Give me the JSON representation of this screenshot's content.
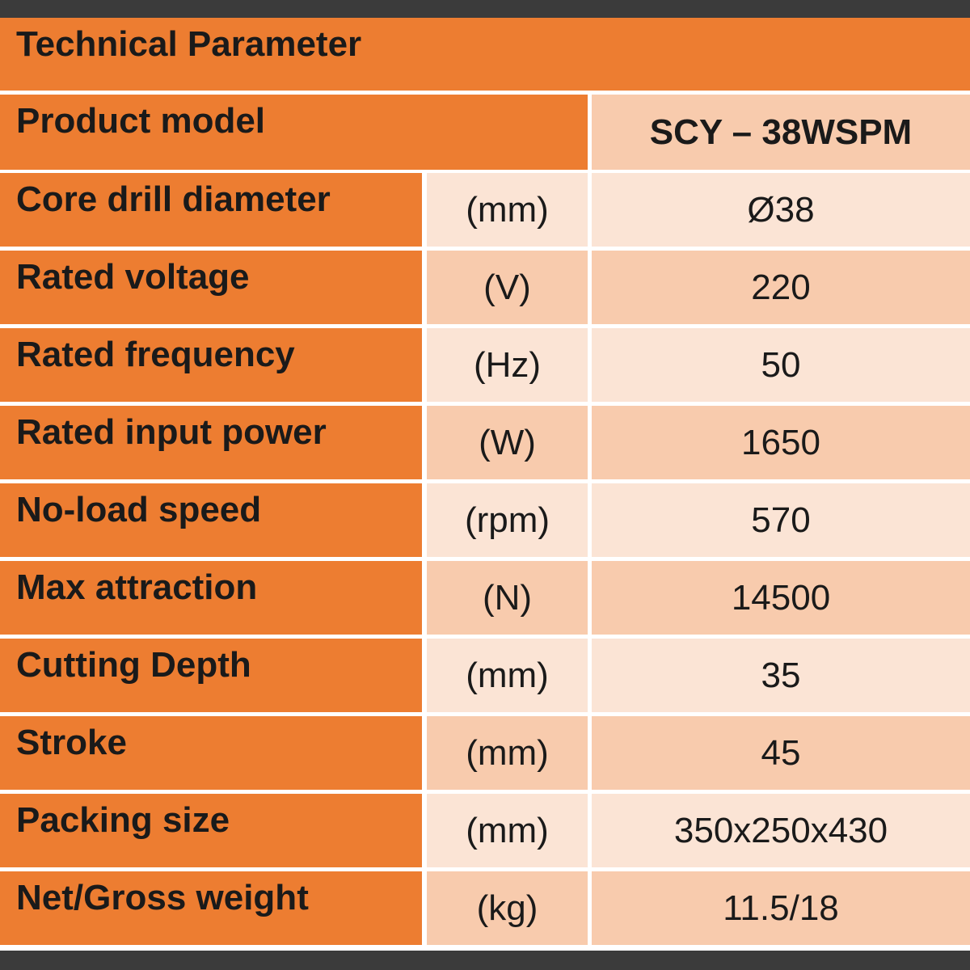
{
  "header": {
    "title": "Technical Parameter"
  },
  "table": {
    "model_label": "Product model",
    "model": "SCY – 38WSPM",
    "rows": [
      [
        "Core drill diameter",
        "(mm)",
        "Ø38"
      ],
      [
        "Rated voltage",
        "(V)",
        "220"
      ],
      [
        "Rated frequency",
        "(Hz)",
        "50"
      ],
      [
        "Rated input power",
        "(W)",
        "1650"
      ],
      [
        "No-load speed",
        "(rpm)",
        "570"
      ],
      [
        "Max attraction",
        "(N)",
        "14500"
      ],
      [
        "Cutting Depth",
        "(mm)",
        "35"
      ],
      [
        "Stroke",
        "(mm)",
        "45"
      ],
      [
        "Packing size",
        "(mm)",
        "350x250x430"
      ],
      [
        "Net/Gross weight",
        "(kg)",
        "11.5/18"
      ]
    ]
  }
}
